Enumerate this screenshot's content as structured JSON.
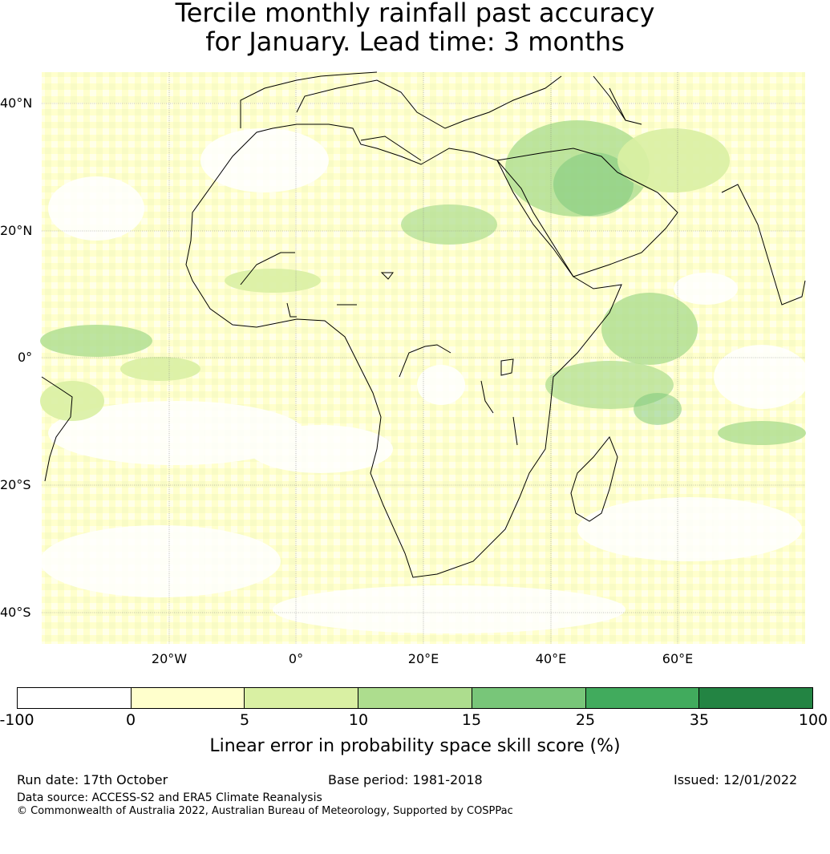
{
  "title_line1": "Tercile monthly rainfall past accuracy",
  "title_line2": "for January. Lead time: 3 months",
  "lat_labels": [
    "40°N",
    "20°N",
    "0°",
    "20°S",
    "40°S"
  ],
  "lon_labels": [
    "20°W",
    "0°",
    "20°E",
    "40°E",
    "60°E"
  ],
  "colorbar": {
    "ticks": [
      "-100",
      "0",
      "5",
      "10",
      "15",
      "25",
      "35",
      "100"
    ],
    "colors": [
      "#ffffff",
      "#ffffcc",
      "#d9f0a3",
      "#addd8e",
      "#78c679",
      "#41ab5d",
      "#238443"
    ],
    "label": "Linear error in probability space skill score (%)"
  },
  "footer": {
    "run_date": "Run date: 17th October",
    "base_period": "Base period: 1981-2018",
    "issued": "Issued: 12/01/2022",
    "data_source": "Data source: ACCESS-S2 and ERA5 Climate Reanalysis",
    "copyright": "© Commonwealth of Australia 2022, Australian Bureau of Meteorology, Supported by COSPPac"
  },
  "map": {
    "lon_range": [
      -40,
      80
    ],
    "lat_range": [
      -45,
      45
    ],
    "gridline_lons": [
      -20,
      0,
      20,
      40,
      60
    ],
    "gridline_lats": [
      40,
      20,
      0,
      -20,
      -40
    ]
  }
}
